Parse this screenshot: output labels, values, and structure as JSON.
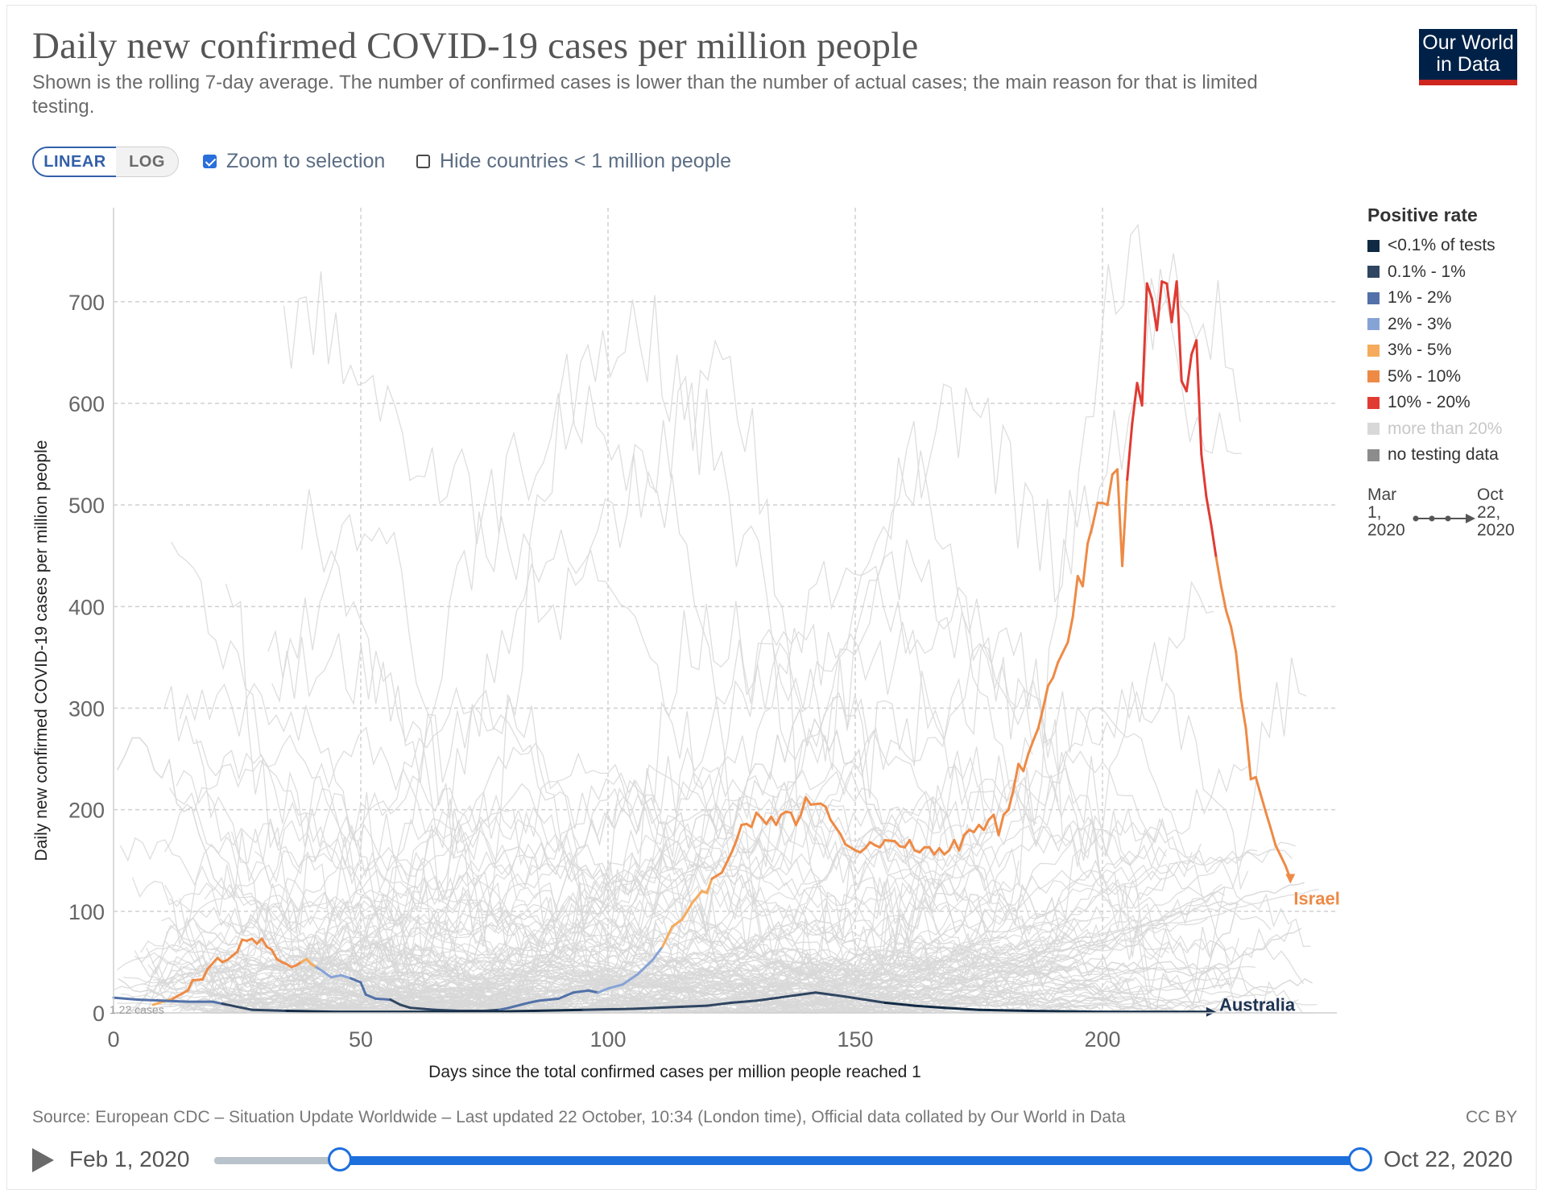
{
  "header": {
    "title": "Daily new confirmed COVID-19 cases per million people",
    "subtitle": "Shown is the rolling 7-day average. The number of confirmed cases is lower than the number of actual cases; the main reason for that is limited testing.",
    "logo_line1": "Our World",
    "logo_line2": "in Data"
  },
  "controls": {
    "linear_label": "LINEAR",
    "log_label": "LOG",
    "zoom_label": "Zoom to selection",
    "zoom_checked": true,
    "hide_label": "Hide countries < 1 million people",
    "hide_checked": false
  },
  "legend": {
    "title": "Positive rate",
    "items": [
      {
        "label": "<0.1% of tests",
        "color": "#102a43"
      },
      {
        "label": "0.1% - 1%",
        "color": "#2f4561"
      },
      {
        "label": "1% - 2%",
        "color": "#5271a8"
      },
      {
        "label": "2% - 3%",
        "color": "#86a3d6"
      },
      {
        "label": "3% - 5%",
        "color": "#f6ab5c"
      },
      {
        "label": "5% - 10%",
        "color": "#ee8a45"
      },
      {
        "label": "10% - 20%",
        "color": "#e03b32"
      },
      {
        "label": "more than 20%",
        "color": "#d8d8d8"
      },
      {
        "label": "no testing data",
        "color": "#8c8c8c"
      }
    ],
    "time_start": [
      "Mar",
      "1,",
      "2020"
    ],
    "time_end": [
      "Oct",
      "22,",
      "2020"
    ]
  },
  "footer": {
    "source": "Source: European CDC – Situation Update Worldwide – Last updated 22 October, 10:34 (London time), Official data collated by Our World in Data",
    "license": "CC BY"
  },
  "timeline": {
    "start_label": "Feb 1, 2020",
    "end_label": "Oct 22, 2020"
  },
  "chart_data": {
    "type": "line",
    "title": "Daily new confirmed COVID-19 cases per million people",
    "xlabel": "Days since the total confirmed cases per million people reached 1",
    "ylabel": "Daily new confirmed COVID-19 cases per million people",
    "xlim": [
      0,
      250
    ],
    "ylim": [
      0,
      790
    ],
    "x_ticks": [
      0,
      50,
      100,
      150,
      200
    ],
    "y_ticks": [
      0,
      100,
      200,
      300,
      400,
      500,
      600,
      700
    ],
    "grid": true,
    "legend_position": "right",
    "baseline_annotation": "1.22 cases",
    "colors": {
      "Israel": "#ee8a45",
      "Australia": "#1d3352",
      "other": "#d8d8d8"
    },
    "series": [
      {
        "name": "Israel",
        "points": [
          [
            8,
            8,
            "#f6ab5c"
          ],
          [
            12,
            14,
            "#f6ab5c"
          ],
          [
            15,
            22,
            "#ee8a45"
          ],
          [
            16,
            32,
            "#ee8a45"
          ],
          [
            18,
            33,
            "#ee8a45"
          ],
          [
            19,
            43,
            "#ee8a45"
          ],
          [
            21,
            54,
            "#ee8a45"
          ],
          [
            22,
            50,
            "#ee8a45"
          ],
          [
            23,
            52,
            "#ee8a45"
          ],
          [
            24,
            56,
            "#ee8a45"
          ],
          [
            25,
            60,
            "#ee8a45"
          ],
          [
            26,
            72,
            "#ee8a45"
          ],
          [
            27,
            71,
            "#ee8a45"
          ],
          [
            28,
            73,
            "#ee8a45"
          ],
          [
            29,
            68,
            "#ee8a45"
          ],
          [
            30,
            73,
            "#ee8a45"
          ],
          [
            31,
            65,
            "#ee8a45"
          ],
          [
            32,
            62,
            "#ee8a45"
          ],
          [
            33,
            53,
            "#ee8a45"
          ],
          [
            34,
            50,
            "#ee8a45"
          ],
          [
            35,
            48,
            "#ee8a45"
          ],
          [
            36,
            45,
            "#ee8a45"
          ],
          [
            37,
            47,
            "#ee8a45"
          ],
          [
            38,
            50,
            "#ee8a45"
          ],
          [
            39,
            53,
            "#f6ab5c"
          ],
          [
            40,
            48,
            "#f6ab5c"
          ],
          [
            41,
            45,
            "#f6ab5c"
          ],
          [
            42,
            42,
            "#86a3d6"
          ],
          [
            44,
            35,
            "#86a3d6"
          ],
          [
            46,
            37,
            "#86a3d6"
          ],
          [
            48,
            34,
            "#86a3d6"
          ],
          [
            50,
            30,
            "#5271a8"
          ],
          [
            51,
            18,
            "#5271a8"
          ],
          [
            53,
            14,
            "#5271a8"
          ],
          [
            56,
            13,
            "#5271a8"
          ],
          [
            58,
            8,
            "#2f4561"
          ],
          [
            60,
            5,
            "#2f4561"
          ],
          [
            65,
            3,
            "#2f4561"
          ],
          [
            70,
            2,
            "#2f4561"
          ],
          [
            75,
            2,
            "#2f4561"
          ],
          [
            78,
            3,
            "#2f4561"
          ],
          [
            80,
            5,
            "#5271a8"
          ],
          [
            84,
            10,
            "#5271a8"
          ],
          [
            86,
            12,
            "#5271a8"
          ],
          [
            90,
            14,
            "#5271a8"
          ],
          [
            93,
            20,
            "#5271a8"
          ],
          [
            96,
            22,
            "#5271a8"
          ],
          [
            98,
            20,
            "#5271a8"
          ],
          [
            100,
            24,
            "#86a3d6"
          ],
          [
            103,
            28,
            "#86a3d6"
          ],
          [
            106,
            38,
            "#86a3d6"
          ],
          [
            109,
            52,
            "#86a3d6"
          ],
          [
            111,
            65,
            "#86a3d6"
          ],
          [
            113,
            85,
            "#f6ab5c"
          ],
          [
            115,
            92,
            "#f6ab5c"
          ],
          [
            117,
            108,
            "#f6ab5c"
          ],
          [
            119,
            120,
            "#f6ab5c"
          ],
          [
            120,
            118,
            "#f6ab5c"
          ],
          [
            121,
            132,
            "#f6ab5c"
          ],
          [
            123,
            138,
            "#ee8a45"
          ],
          [
            125,
            158,
            "#ee8a45"
          ],
          [
            126,
            170,
            "#ee8a45"
          ],
          [
            127,
            185,
            "#ee8a45"
          ],
          [
            128,
            186,
            "#ee8a45"
          ],
          [
            129,
            183,
            "#ee8a45"
          ],
          [
            130,
            197,
            "#ee8a45"
          ],
          [
            131,
            192,
            "#ee8a45"
          ],
          [
            132,
            186,
            "#ee8a45"
          ],
          [
            133,
            193,
            "#ee8a45"
          ],
          [
            134,
            185,
            "#ee8a45"
          ],
          [
            135,
            195,
            "#ee8a45"
          ],
          [
            136,
            198,
            "#ee8a45"
          ],
          [
            137,
            197,
            "#ee8a45"
          ],
          [
            138,
            185,
            "#ee8a45"
          ],
          [
            139,
            195,
            "#ee8a45"
          ],
          [
            140,
            212,
            "#ee8a45"
          ],
          [
            141,
            205,
            "#ee8a45"
          ],
          [
            143,
            206,
            "#ee8a45"
          ],
          [
            144,
            203,
            "#ee8a45"
          ],
          [
            145,
            190,
            "#ee8a45"
          ],
          [
            146,
            183,
            "#ee8a45"
          ],
          [
            147,
            176,
            "#ee8a45"
          ],
          [
            148,
            166,
            "#ee8a45"
          ],
          [
            150,
            160,
            "#ee8a45"
          ],
          [
            151,
            158,
            "#ee8a45"
          ],
          [
            152,
            162,
            "#ee8a45"
          ],
          [
            153,
            168,
            "#ee8a45"
          ],
          [
            154,
            165,
            "#ee8a45"
          ],
          [
            155,
            163,
            "#ee8a45"
          ],
          [
            156,
            170,
            "#ee8a45"
          ],
          [
            158,
            169,
            "#ee8a45"
          ],
          [
            159,
            164,
            "#ee8a45"
          ],
          [
            160,
            163,
            "#ee8a45"
          ],
          [
            161,
            170,
            "#ee8a45"
          ],
          [
            162,
            160,
            "#ee8a45"
          ],
          [
            163,
            158,
            "#ee8a45"
          ],
          [
            164,
            163,
            "#ee8a45"
          ],
          [
            165,
            163,
            "#ee8a45"
          ],
          [
            166,
            156,
            "#ee8a45"
          ],
          [
            167,
            162,
            "#ee8a45"
          ],
          [
            168,
            156,
            "#ee8a45"
          ],
          [
            169,
            160,
            "#ee8a45"
          ],
          [
            170,
            170,
            "#ee8a45"
          ],
          [
            171,
            160,
            "#ee8a45"
          ],
          [
            172,
            175,
            "#ee8a45"
          ],
          [
            173,
            180,
            "#ee8a45"
          ],
          [
            174,
            178,
            "#ee8a45"
          ],
          [
            175,
            185,
            "#ee8a45"
          ],
          [
            176,
            180,
            "#ee8a45"
          ],
          [
            177,
            190,
            "#ee8a45"
          ],
          [
            178,
            195,
            "#ee8a45"
          ],
          [
            179,
            175,
            "#ee8a45"
          ],
          [
            180,
            195,
            "#ee8a45"
          ],
          [
            181,
            200,
            "#ee8a45"
          ],
          [
            182,
            220,
            "#ee8a45"
          ],
          [
            183,
            245,
            "#ee8a45"
          ],
          [
            184,
            238,
            "#ee8a45"
          ],
          [
            185,
            255,
            "#ee8a45"
          ],
          [
            186,
            268,
            "#ee8a45"
          ],
          [
            187,
            280,
            "#ee8a45"
          ],
          [
            188,
            300,
            "#ee8a45"
          ],
          [
            189,
            322,
            "#ee8a45"
          ],
          [
            190,
            330,
            "#ee8a45"
          ],
          [
            191,
            345,
            "#ee8a45"
          ],
          [
            192,
            355,
            "#ee8a45"
          ],
          [
            193,
            365,
            "#ee8a45"
          ],
          [
            194,
            390,
            "#ee8a45"
          ],
          [
            195,
            430,
            "#ee8a45"
          ],
          [
            196,
            420,
            "#ee8a45"
          ],
          [
            197,
            462,
            "#ee8a45"
          ],
          [
            198,
            480,
            "#ee8a45"
          ],
          [
            199,
            502,
            "#ee8a45"
          ],
          [
            200,
            502,
            "#ee8a45"
          ],
          [
            201,
            500,
            "#ee8a45"
          ],
          [
            202,
            530,
            "#ee8a45"
          ],
          [
            203,
            535,
            "#ee8a45"
          ],
          [
            204,
            440,
            "#ee8a45"
          ],
          [
            205,
            525,
            "#ee8a45"
          ],
          [
            206,
            580,
            "#e03b32"
          ],
          [
            207,
            620,
            "#e03b32"
          ],
          [
            208,
            598,
            "#e03b32"
          ],
          [
            209,
            718,
            "#e03b32"
          ],
          [
            210,
            703,
            "#e03b32"
          ],
          [
            211,
            672,
            "#e03b32"
          ],
          [
            212,
            720,
            "#e03b32"
          ],
          [
            213,
            718,
            "#e03b32"
          ],
          [
            214,
            680,
            "#e03b32"
          ],
          [
            215,
            720,
            "#e03b32"
          ],
          [
            216,
            622,
            "#e03b32"
          ],
          [
            217,
            612,
            "#e03b32"
          ],
          [
            218,
            648,
            "#e03b32"
          ],
          [
            219,
            662,
            "#e03b32"
          ],
          [
            220,
            550,
            "#e03b32"
          ],
          [
            221,
            508,
            "#e03b32"
          ],
          [
            222,
            480,
            "#e03b32"
          ],
          [
            223,
            448,
            "#e03b32"
          ],
          [
            224,
            420,
            "#ee8a45"
          ],
          [
            225,
            396,
            "#ee8a45"
          ],
          [
            226,
            380,
            "#ee8a45"
          ],
          [
            227,
            355,
            "#ee8a45"
          ],
          [
            228,
            310,
            "#ee8a45"
          ],
          [
            229,
            280,
            "#ee8a45"
          ],
          [
            230,
            230,
            "#ee8a45"
          ],
          [
            231,
            232,
            "#ee8a45"
          ],
          [
            232,
            215,
            "#ee8a45"
          ],
          [
            233,
            198,
            "#ee8a45"
          ],
          [
            234,
            182,
            "#ee8a45"
          ],
          [
            235,
            165,
            "#ee8a45"
          ],
          [
            236,
            155,
            "#ee8a45"
          ],
          [
            237,
            145,
            "#ee8a45"
          ],
          [
            238,
            132,
            "#ee8a45"
          ]
        ]
      },
      {
        "name": "Australia",
        "points": [
          [
            0,
            15,
            "#5271a8"
          ],
          [
            5,
            13,
            "#5271a8"
          ],
          [
            10,
            12,
            "#5271a8"
          ],
          [
            15,
            11,
            "#5271a8"
          ],
          [
            20,
            11,
            "#5271a8"
          ],
          [
            22,
            9,
            "#5271a8"
          ],
          [
            25,
            6,
            "#2f4561"
          ],
          [
            28,
            3,
            "#2f4561"
          ],
          [
            35,
            2,
            "#2f4561"
          ],
          [
            45,
            1,
            "#102a43"
          ],
          [
            60,
            1,
            "#102a43"
          ],
          [
            75,
            1,
            "#102a43"
          ],
          [
            85,
            2,
            "#102a43"
          ],
          [
            95,
            3,
            "#102a43"
          ],
          [
            105,
            4,
            "#2f4561"
          ],
          [
            115,
            6,
            "#2f4561"
          ],
          [
            120,
            7,
            "#2f4561"
          ],
          [
            125,
            10,
            "#2f4561"
          ],
          [
            130,
            12,
            "#2f4561"
          ],
          [
            133,
            14,
            "#2f4561"
          ],
          [
            136,
            16,
            "#2f4561"
          ],
          [
            139,
            18,
            "#2f4561"
          ],
          [
            142,
            20,
            "#2f4561"
          ],
          [
            145,
            18,
            "#2f4561"
          ],
          [
            148,
            16,
            "#2f4561"
          ],
          [
            152,
            13,
            "#2f4561"
          ],
          [
            156,
            10,
            "#2f4561"
          ],
          [
            162,
            7,
            "#102a43"
          ],
          [
            168,
            5,
            "#102a43"
          ],
          [
            175,
            3,
            "#102a43"
          ],
          [
            185,
            2,
            "#102a43"
          ],
          [
            200,
            1,
            "#102a43"
          ],
          [
            215,
            1,
            "#102a43"
          ],
          [
            221,
            1,
            "#102a43"
          ]
        ]
      }
    ]
  }
}
